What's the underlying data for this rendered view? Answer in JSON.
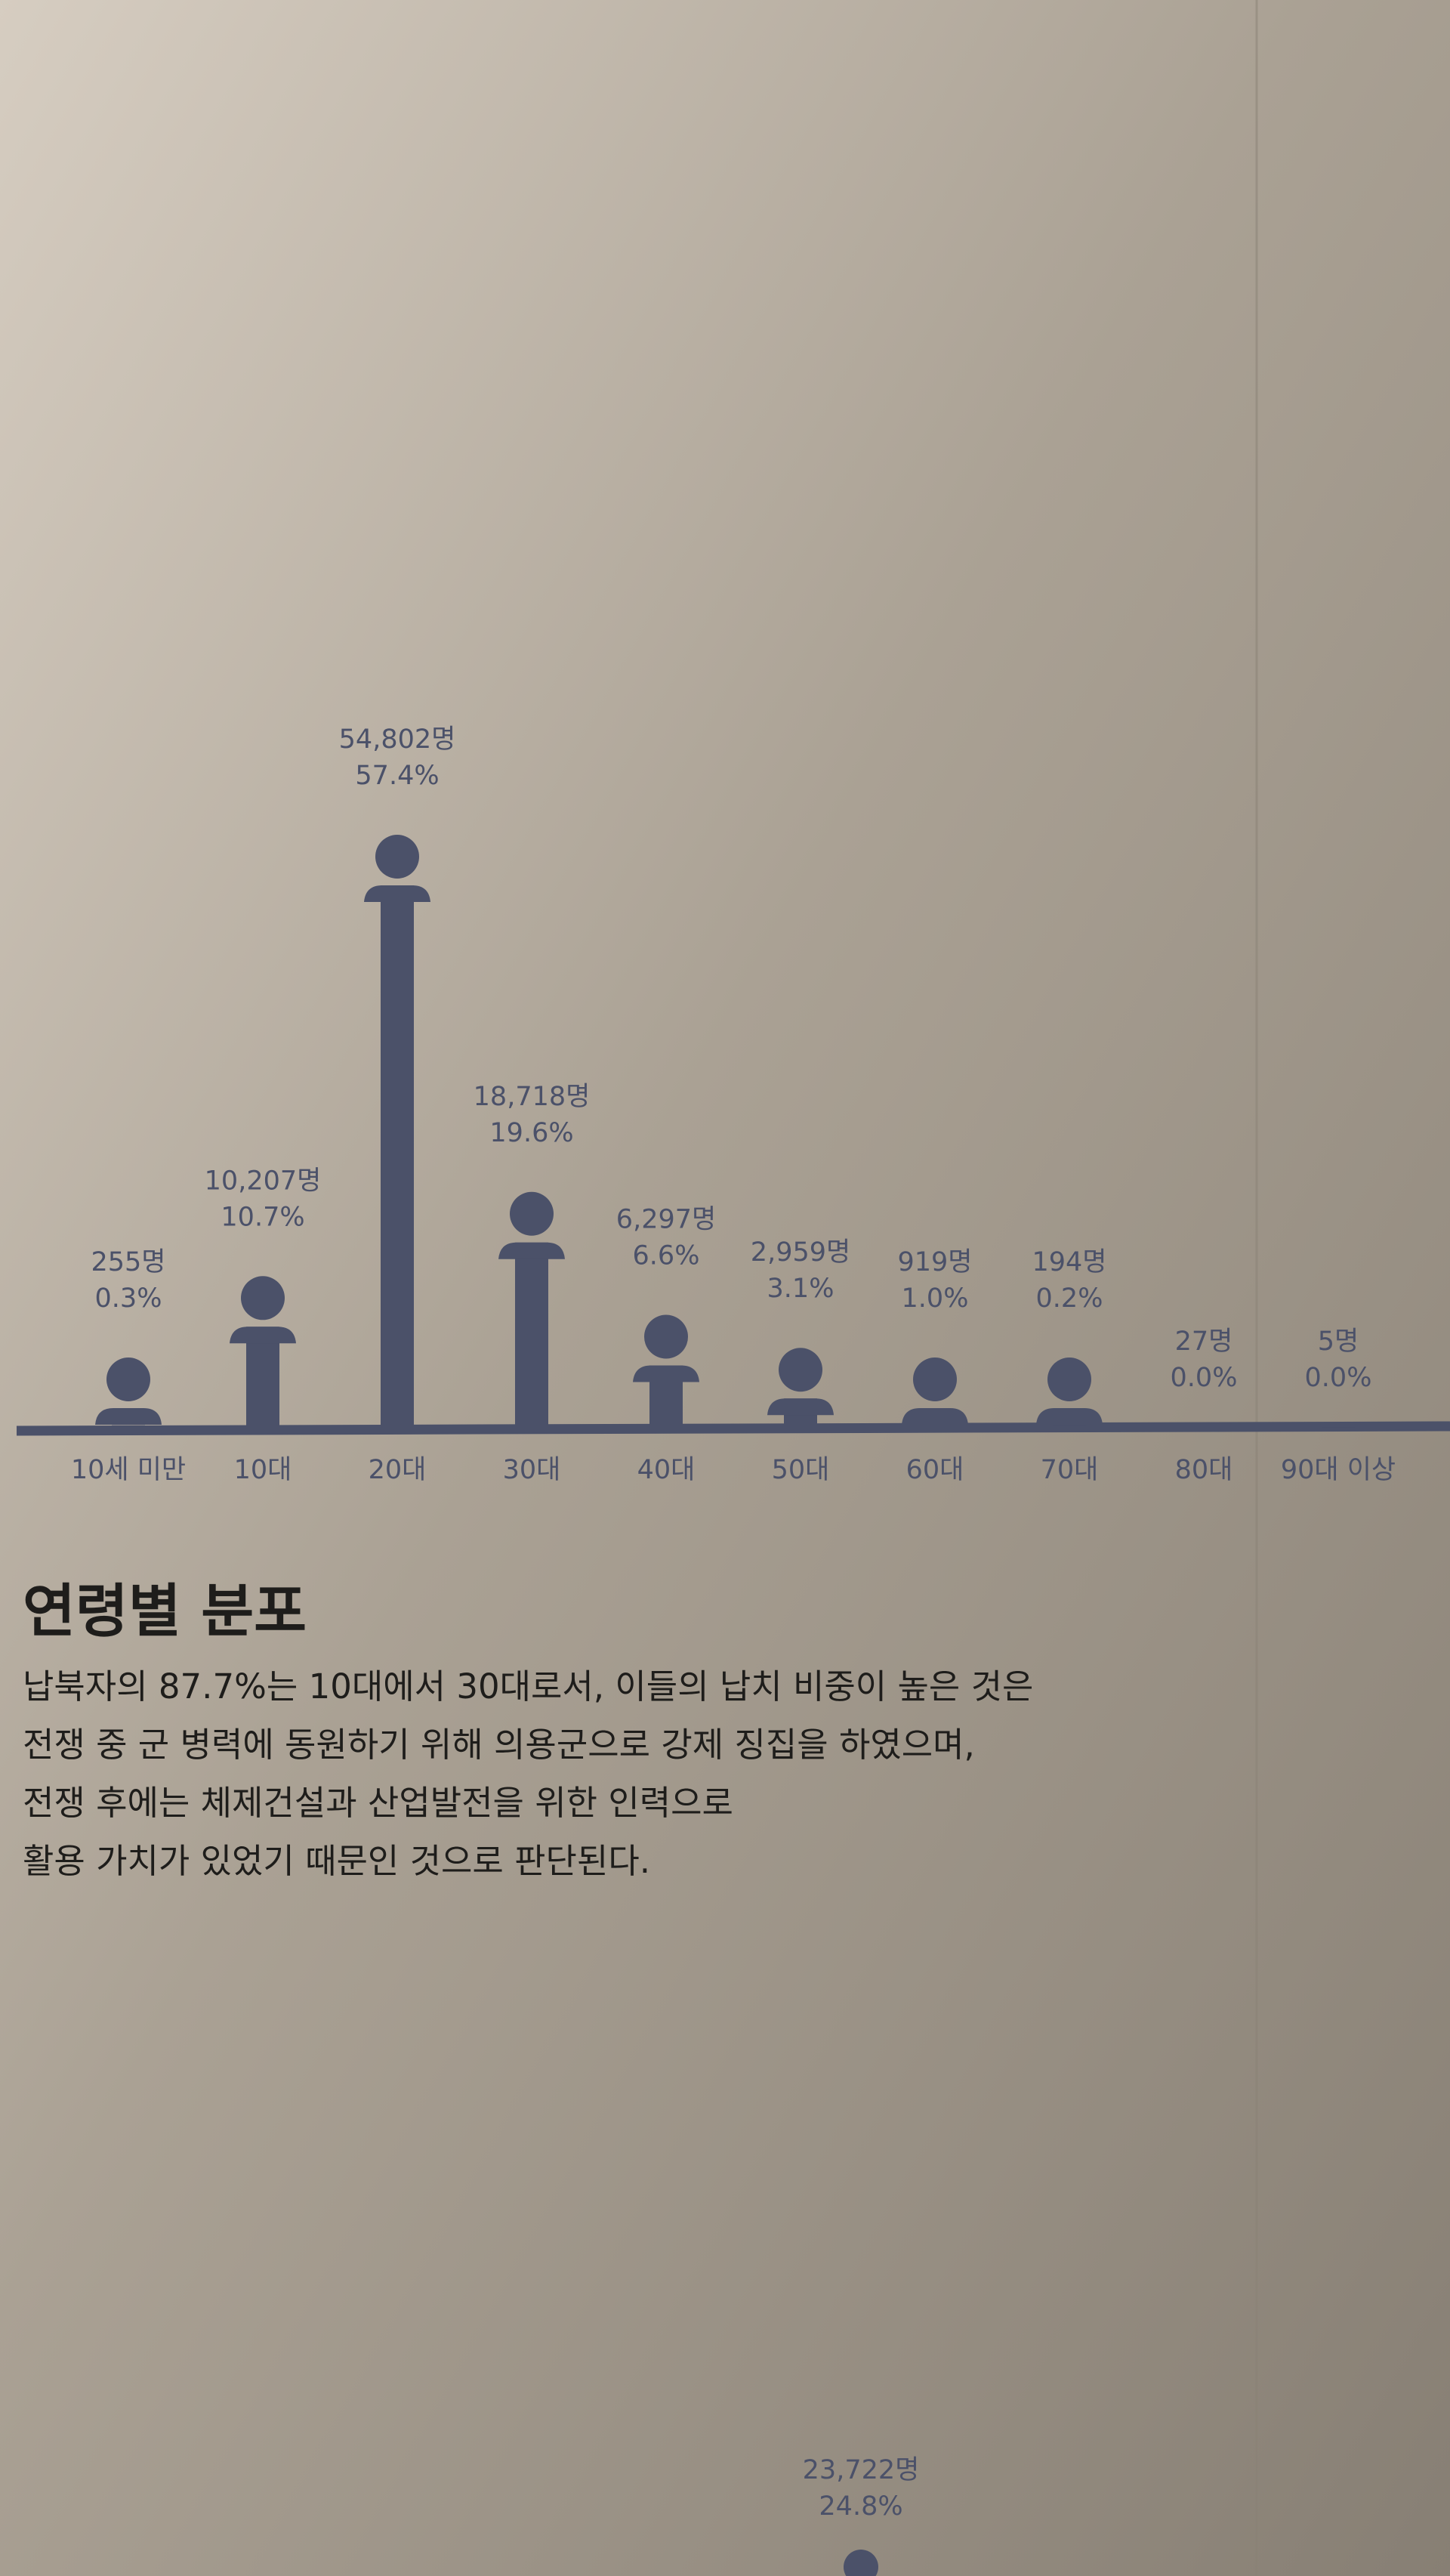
{
  "chart_data": [
    {
      "type": "bar",
      "title": "연령별 분포",
      "notes": [
        "납북자의 87.7%는 10대에서 30대로서, 이들의 납치 비중이 높은 것은",
        "전쟁 중 군 병력에 동원하기 위해 의용군으로 강제 징집을 하였으며,",
        "전쟁 후에는 체제건설과 산업발전을 위한 인력으로",
        "활용 가치가 있었기 때문인 것으로 판단된다."
      ],
      "categories": [
        "10세 미만",
        "10대",
        "20대",
        "30대",
        "40대",
        "50대",
        "60대",
        "70대",
        "80대",
        "90대 이상"
      ],
      "values": [
        255,
        10207,
        54802,
        18718,
        6297,
        2959,
        919,
        194,
        27,
        5
      ],
      "value_labels": [
        "255명",
        "10,207명",
        "54,802명",
        "18,718명",
        "6,297명",
        "2,959명",
        "919명",
        "194명",
        "27명",
        "5명"
      ],
      "shares": [
        0.3,
        10.7,
        57.4,
        19.6,
        6.6,
        3.1,
        1.0,
        0.2,
        0.0,
        0.0
      ],
      "share_labels": [
        "0.3%",
        "10.7%",
        "57.4%",
        "19.6%",
        "6.6%",
        "3.1%",
        "1.0%",
        "0.2%",
        "0.0%",
        "0.0%"
      ],
      "color": "#4b5169"
    },
    {
      "type": "dot",
      "values": [
        23722
      ],
      "value_labels": [
        "23,722명"
      ],
      "shares": [
        24.8
      ],
      "share_labels": [
        "24.8%"
      ],
      "color": "#4b5169"
    }
  ]
}
